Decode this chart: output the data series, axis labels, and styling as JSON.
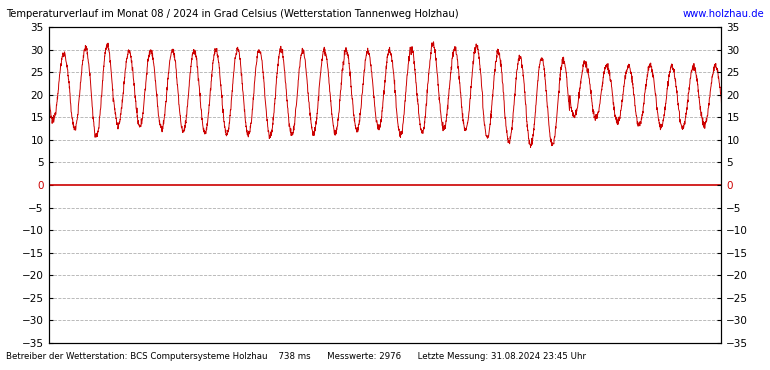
{
  "title": "Temperaturverlauf im Monat 08 / 2024 in Grad Celsius (Wetterstation Tannenweg Holzhau)",
  "website": "www.holzhau.de",
  "footer_left": "Betreiber der Wetterstation: BCS Computersysteme Holzhau",
  "footer_mid": "738 ms",
  "footer_right1": "Messwerte: 2976",
  "footer_right2": "Letzte Messung: 31.08.2024 23:45 Uhr",
  "ylim": [
    -35,
    35
  ],
  "yticks": [
    35,
    30,
    25,
    20,
    15,
    10,
    5,
    0,
    -5,
    -10,
    -15,
    -20,
    -25,
    -30,
    -35
  ],
  "line_color": "#cc0000",
  "zero_line_color": "#cc0000",
  "grid_color": "#b0b0b0",
  "background_color": "#ffffff",
  "title_bg": "#e0e0e0",
  "footer_bg": "#e0e0e0",
  "border_color": "#000000",
  "day_min": [
    14.2,
    12.5,
    10.5,
    13.0,
    12.8,
    12.2,
    11.8,
    11.5,
    11.2,
    11.0,
    10.8,
    11.0,
    11.5,
    11.2,
    12.0,
    12.5,
    11.0,
    11.5,
    12.5,
    12.0,
    10.5,
    9.5,
    8.5,
    8.5,
    15.0,
    14.5,
    13.8,
    13.0,
    12.5,
    12.5,
    13.0
  ],
  "day_max": [
    29.5,
    30.5,
    31.2,
    29.8,
    30.2,
    30.0,
    29.8,
    30.0,
    30.2,
    30.0,
    30.2,
    29.8,
    30.0,
    30.0,
    29.8,
    29.8,
    30.5,
    31.2,
    30.2,
    30.8,
    29.5,
    28.5,
    28.2,
    27.8,
    27.2,
    26.5,
    26.5,
    26.5,
    26.5,
    26.2,
    26.5
  ],
  "n_per_day": 96,
  "n_days": 31
}
